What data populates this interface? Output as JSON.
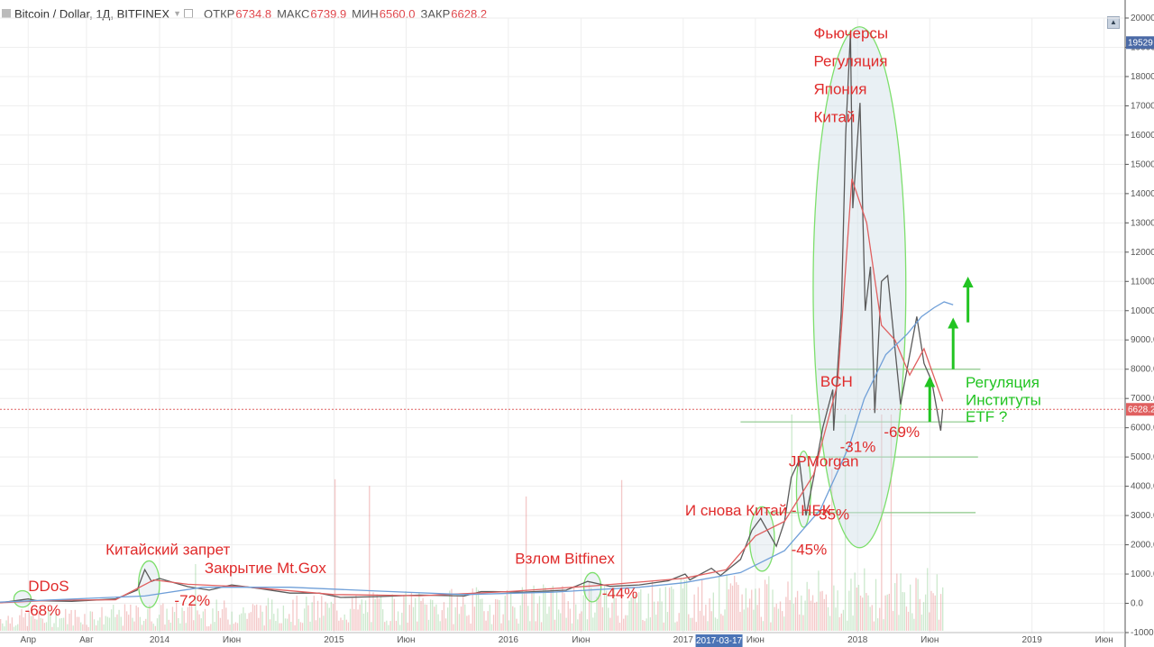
{
  "header": {
    "symbol": "Bitcoin / Dollar, 1Д, BITFINEX",
    "open_label": "ОТКР",
    "open": "6734.8",
    "high_label": "МАКС",
    "high": "6739.9",
    "low_label": "МИН",
    "low": "6560.0",
    "close_label": "ЗАКР",
    "close": "6628.2"
  },
  "chart_data": {
    "type": "line",
    "ylim": [
      -1000,
      20000
    ],
    "y_ticks": [
      -1000,
      0,
      1000,
      2000,
      3000,
      4000,
      5000,
      6000,
      7000,
      8000,
      9000,
      10000,
      11000,
      12000,
      13000,
      14000,
      15000,
      16000,
      17000,
      18000,
      19000,
      20000
    ],
    "y_tick_labels": [
      "-1000.0",
      "0.0",
      "1000.0",
      "2000.0",
      "3000.0",
      "4000.0",
      "5000.0",
      "6000.0",
      "7000.0",
      "8000.0",
      "9000.0",
      "10000.0",
      "11000.0",
      "12000.0",
      "13000.0",
      "14000.0",
      "15000.0",
      "16000.0",
      "17000.0",
      "18000.0",
      "19000.0",
      "20000.0"
    ],
    "xlim": [
      "2013-02-01",
      "2019-07-15"
    ],
    "x_ticks": [
      {
        "date": "2013-04-01",
        "label": "Апр"
      },
      {
        "date": "2013-08-01",
        "label": "Авг"
      },
      {
        "date": "2014-01-01",
        "label": "2014"
      },
      {
        "date": "2014-06-01",
        "label": "Июн"
      },
      {
        "date": "2015-01-01",
        "label": "2015"
      },
      {
        "date": "2015-06-01",
        "label": "Июн"
      },
      {
        "date": "2016-01-01",
        "label": "2016"
      },
      {
        "date": "2016-06-01",
        "label": "Июн"
      },
      {
        "date": "2017-01-01",
        "label": "2017"
      },
      {
        "date": "2017-06-01",
        "label": "Июн"
      },
      {
        "date": "2018-01-01",
        "label": "2018"
      },
      {
        "date": "2018-06-01",
        "label": "Июн"
      },
      {
        "date": "2019-01-01",
        "label": "2019"
      },
      {
        "date": "2019-06-01",
        "label": "Июн"
      }
    ],
    "crosshair_date": {
      "date": "2017-03-17",
      "label": "2017-03-17"
    },
    "current_price": {
      "value": 6628.2,
      "label": "6628.2"
    },
    "top_price_label": {
      "value": 19529,
      "label": "19529"
    },
    "series": [
      {
        "color": "#5a5a5a",
        "points": [
          [
            "2013-02-01",
            20
          ],
          [
            "2013-04-01",
            150
          ],
          [
            "2013-04-20",
            90
          ],
          [
            "2013-07-01",
            70
          ],
          [
            "2013-10-01",
            150
          ],
          [
            "2013-11-15",
            450
          ],
          [
            "2013-12-01",
            1150
          ],
          [
            "2013-12-15",
            750
          ],
          [
            "2014-01-01",
            850
          ],
          [
            "2014-02-01",
            700
          ],
          [
            "2014-03-01",
            570
          ],
          [
            "2014-04-15",
            450
          ],
          [
            "2014-06-01",
            630
          ],
          [
            "2014-08-01",
            500
          ],
          [
            "2014-10-01",
            350
          ],
          [
            "2014-12-01",
            350
          ],
          [
            "2015-01-15",
            200
          ],
          [
            "2015-04-01",
            230
          ],
          [
            "2015-07-01",
            280
          ],
          [
            "2015-10-01",
            250
          ],
          [
            "2015-11-05",
            400
          ],
          [
            "2015-12-01",
            400
          ],
          [
            "2016-02-01",
            380
          ],
          [
            "2016-05-01",
            450
          ],
          [
            "2016-06-15",
            750
          ],
          [
            "2016-08-01",
            580
          ],
          [
            "2016-10-01",
            630
          ],
          [
            "2016-12-01",
            770
          ],
          [
            "2017-01-05",
            1000
          ],
          [
            "2017-01-15",
            800
          ],
          [
            "2017-03-01",
            1200
          ],
          [
            "2017-03-20",
            950
          ],
          [
            "2017-05-01",
            1500
          ],
          [
            "2017-05-25",
            2500
          ],
          [
            "2017-06-12",
            2900
          ],
          [
            "2017-07-15",
            1950
          ],
          [
            "2017-08-01",
            2800
          ],
          [
            "2017-08-15",
            4300
          ],
          [
            "2017-09-01",
            4900
          ],
          [
            "2017-09-15",
            3000
          ],
          [
            "2017-10-01",
            4300
          ],
          [
            "2017-10-20",
            6000
          ],
          [
            "2017-11-10",
            7300
          ],
          [
            "2017-11-12",
            5900
          ],
          [
            "2017-11-28",
            10000
          ],
          [
            "2017-12-07",
            16000
          ],
          [
            "2017-12-17",
            19500
          ],
          [
            "2017-12-22",
            13500
          ],
          [
            "2018-01-06",
            17100
          ],
          [
            "2018-01-17",
            10000
          ],
          [
            "2018-01-28",
            11500
          ],
          [
            "2018-02-06",
            6500
          ],
          [
            "2018-02-20",
            11000
          ],
          [
            "2018-03-05",
            11200
          ],
          [
            "2018-04-01",
            6800
          ],
          [
            "2018-05-05",
            9800
          ],
          [
            "2018-05-20",
            8200
          ],
          [
            "2018-06-05",
            7600
          ],
          [
            "2018-06-24",
            5900
          ],
          [
            "2018-06-28",
            6628
          ]
        ]
      },
      {
        "color": "#e06060",
        "points": [
          [
            "2013-02-01",
            20
          ],
          [
            "2013-06-01",
            110
          ],
          [
            "2013-10-01",
            120
          ],
          [
            "2013-12-20",
            800
          ],
          [
            "2014-03-01",
            650
          ],
          [
            "2014-07-01",
            560
          ],
          [
            "2015-01-01",
            300
          ],
          [
            "2015-07-01",
            260
          ],
          [
            "2016-01-01",
            400
          ],
          [
            "2016-07-01",
            600
          ],
          [
            "2017-01-01",
            850
          ],
          [
            "2017-04-01",
            1150
          ],
          [
            "2017-06-01",
            2300
          ],
          [
            "2017-08-01",
            2800
          ],
          [
            "2017-10-01",
            4400
          ],
          [
            "2017-11-20",
            7500
          ],
          [
            "2017-12-20",
            14500
          ],
          [
            "2018-01-20",
            13000
          ],
          [
            "2018-02-20",
            9500
          ],
          [
            "2018-03-20",
            9000
          ],
          [
            "2018-04-20",
            7800
          ],
          [
            "2018-05-20",
            8700
          ],
          [
            "2018-06-28",
            6900
          ]
        ]
      },
      {
        "color": "#6f9fd8",
        "points": [
          [
            "2013-02-01",
            40
          ],
          [
            "2013-12-01",
            250
          ],
          [
            "2014-04-01",
            550
          ],
          [
            "2014-10-01",
            550
          ],
          [
            "2015-04-01",
            420
          ],
          [
            "2015-10-01",
            300
          ],
          [
            "2016-04-01",
            380
          ],
          [
            "2016-10-01",
            550
          ],
          [
            "2017-01-01",
            700
          ],
          [
            "2017-05-01",
            1050
          ],
          [
            "2017-08-01",
            1800
          ],
          [
            "2017-10-15",
            3200
          ],
          [
            "2017-12-15",
            5400
          ],
          [
            "2018-01-15",
            7000
          ],
          [
            "2018-03-01",
            8500
          ],
          [
            "2018-04-15",
            9200
          ],
          [
            "2018-05-15",
            9800
          ],
          [
            "2018-06-10",
            10100
          ],
          [
            "2018-07-01",
            10300
          ],
          [
            "2018-07-20",
            10200
          ]
        ]
      }
    ],
    "volume": {
      "ylim": [
        -1000,
        3000
      ],
      "color_up": "#6fbf73",
      "color_down": "#e06060"
    },
    "horizontal_levels": [
      {
        "y": 8000,
        "x_start": "2017-10-10",
        "x_end": "2018-09-15"
      },
      {
        "y": 6200,
        "x_start": "2017-05-01",
        "x_end": "2018-09-01"
      },
      {
        "y": 5000,
        "x_start": "2017-09-01",
        "x_end": "2018-09-10"
      },
      {
        "y": 3100,
        "x_start": "2017-06-20",
        "x_end": "2018-09-05"
      }
    ],
    "zones": [
      {
        "center": [
          "2013-03-20",
          150
        ],
        "rx_days": 18,
        "ry": 280,
        "fill": false
      },
      {
        "center": [
          "2013-12-10",
          650
        ],
        "rx_days": 22,
        "ry": 800,
        "fill": false
      },
      {
        "center": [
          "2016-06-25",
          550
        ],
        "rx_days": 18,
        "ry": 500,
        "fill": false
      },
      {
        "center": [
          "2017-06-15",
          2200
        ],
        "rx_days": 26,
        "ry": 1100,
        "fill": false
      },
      {
        "center": [
          "2017-09-10",
          3900
        ],
        "rx_days": 15,
        "ry": 1300,
        "fill": false
      },
      {
        "center": [
          "2018-01-05",
          10800
        ],
        "rx_days": 97,
        "ry": 8900,
        "fill": true
      }
    ],
    "arrows": [
      {
        "date": "2018-06-01",
        "from": 6200,
        "to": 7700
      },
      {
        "date": "2018-07-20",
        "from": 8000,
        "to": 9700
      },
      {
        "date": "2018-08-20",
        "from": 9600,
        "to": 11100
      }
    ],
    "annotations": [
      {
        "text": "Фьючерсы",
        "date": "2017-10-01",
        "y": 19300,
        "color": "#e02b2b"
      },
      {
        "text": "Регуляция",
        "date": "2017-10-01",
        "y": 18350,
        "color": "#e02b2b"
      },
      {
        "text": "Япония",
        "date": "2017-10-01",
        "y": 17400,
        "color": "#e02b2b"
      },
      {
        "text": "Китай",
        "date": "2017-10-01",
        "y": 16450,
        "color": "#e02b2b"
      },
      {
        "text": "BCH",
        "date": "2017-10-15",
        "y": 7400,
        "color": "#e02b2b"
      },
      {
        "text": "-31%",
        "date": "2017-11-25",
        "y": 5180,
        "color": "#e02b2b"
      },
      {
        "text": "JPMorgan",
        "date": "2017-08-10",
        "y": 4680,
        "color": "#e02b2b"
      },
      {
        "text": "-35%",
        "date": "2017-10-01",
        "y": 2860,
        "color": "#e02b2b"
      },
      {
        "text": "И снова Китай - НБК",
        "date": "2017-01-05",
        "y": 3000,
        "color": "#e02b2b"
      },
      {
        "text": "-45%",
        "date": "2017-08-15",
        "y": 1660,
        "color": "#e02b2b"
      },
      {
        "text": "-69%",
        "date": "2018-02-25",
        "y": 5680,
        "color": "#e02b2b"
      },
      {
        "text": "Взлом Bitfinex",
        "date": "2016-01-15",
        "y": 1350,
        "color": "#e02b2b"
      },
      {
        "text": "-44%",
        "date": "2016-07-15",
        "y": 170,
        "color": "#e02b2b"
      },
      {
        "text": "Китайский запрет",
        "date": "2013-09-10",
        "y": 1660,
        "color": "#e02b2b"
      },
      {
        "text": "Закрытие Mt.Gox",
        "date": "2014-04-05",
        "y": 1030,
        "color": "#e02b2b"
      },
      {
        "text": "-72%",
        "date": "2014-02-01",
        "y": -70,
        "color": "#e02b2b"
      },
      {
        "text": "DDoS",
        "date": "2013-04-01",
        "y": 420,
        "color": "#e02b2b"
      },
      {
        "text": "-68%",
        "date": "2013-03-25",
        "y": -410,
        "color": "#e02b2b"
      },
      {
        "text": "Регуляция",
        "date": "2018-08-15",
        "y": 7370,
        "color": "#22c422"
      },
      {
        "text": "Институты",
        "date": "2018-08-15",
        "y": 6780,
        "color": "#22c422"
      },
      {
        "text": "ETF ?",
        "date": "2018-08-15",
        "y": 6200,
        "color": "#22c422"
      }
    ],
    "colors": {
      "red": "#e02b2b",
      "green": "#22c422",
      "zone_stroke": "#7ddf6c",
      "zone_fill": "#cfdde6",
      "grid": "#eeeeee",
      "level": "#8cc98a"
    }
  }
}
